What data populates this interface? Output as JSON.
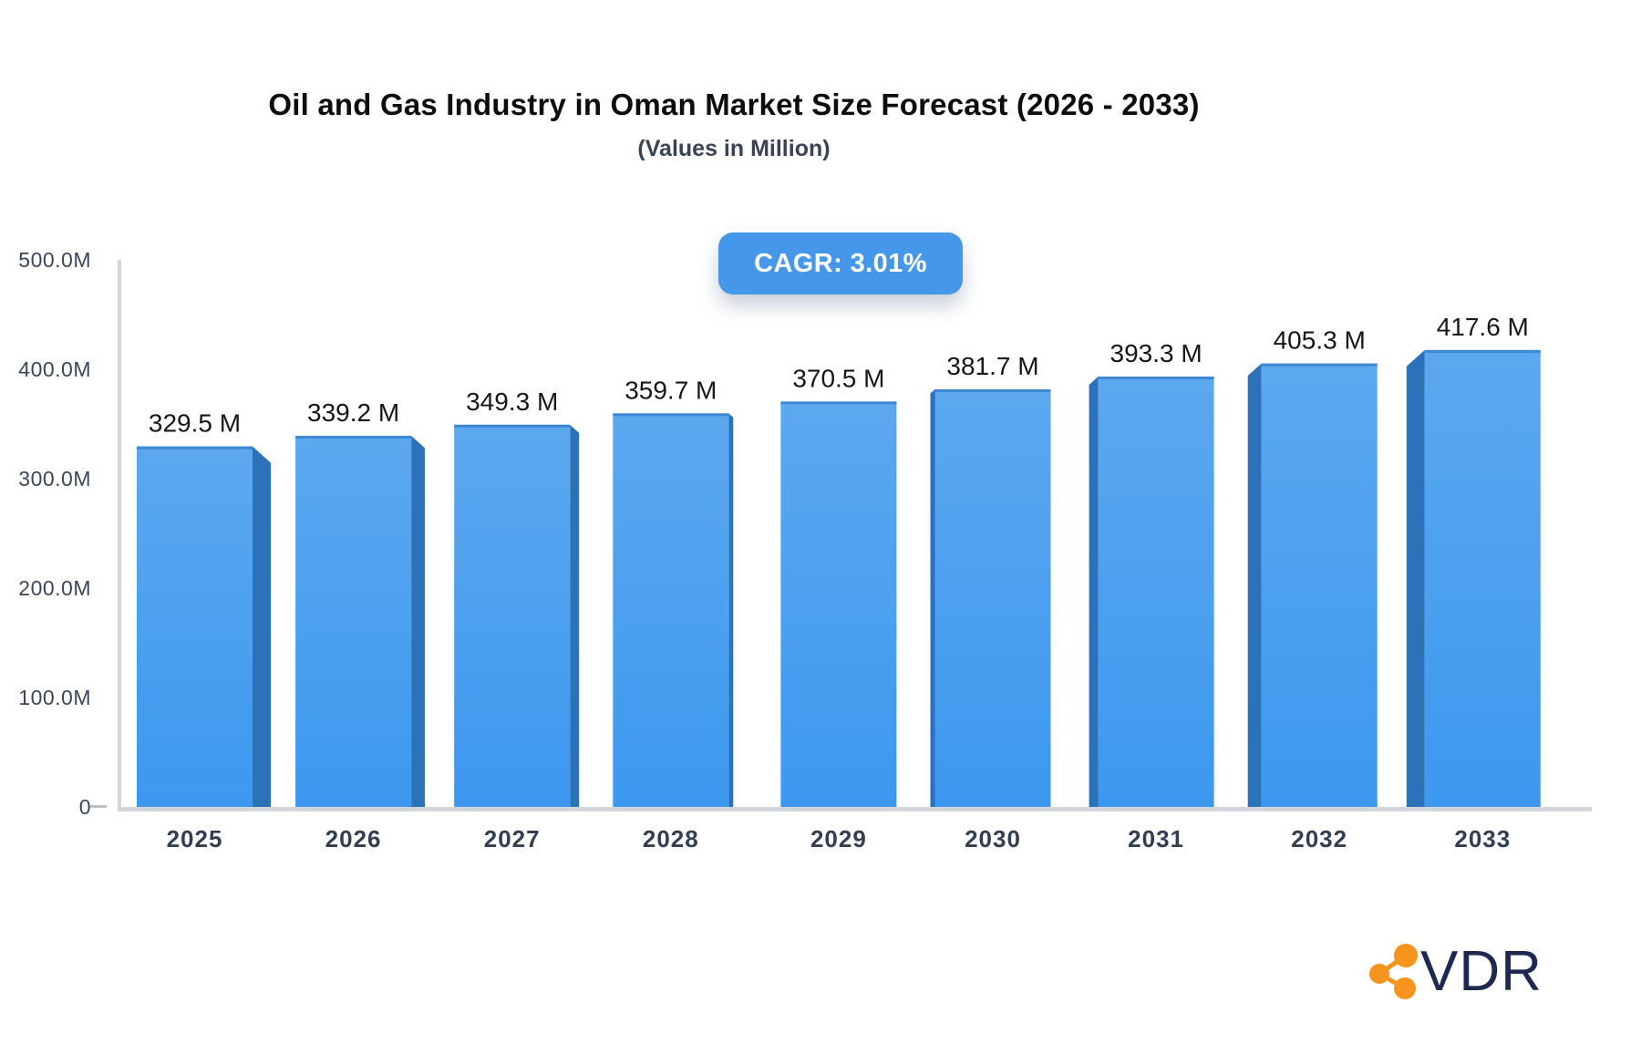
{
  "header": {
    "title": "Oil and Gas Industry in Oman Market Size Forecast (2026 - 2033)",
    "subtitle": "(Values in Million)",
    "cagr_label": "CAGR: 3.01%"
  },
  "logo": {
    "text": "VDR"
  },
  "colors": {
    "bar_face_top": "#5CA8EF",
    "bar_face_bottom": "#3C98EF",
    "bar_side": "#2B72B8",
    "bar_top_edge": "#3E87D3",
    "axis_line": "#D2D6DB",
    "tick_dash": "#B9BFC7",
    "badge_bg": "#4497E9",
    "value_label": "#15171B",
    "axis_label": "#3C4659",
    "year_label": "#333E52",
    "logo_orange": "#F6941E",
    "logo_navy": "#1F2950"
  },
  "chart_data": {
    "type": "bar",
    "title": "Oil and Gas Industry in Oman Market Size Forecast (2026 - 2033)",
    "subtitle": "(Values in Million)",
    "unit": "Million",
    "cagr": "3.01%",
    "categories": [
      "2025",
      "2026",
      "2027",
      "2028",
      "2029",
      "2030",
      "2031",
      "2032",
      "2033"
    ],
    "values": [
      329.5,
      339.2,
      349.3,
      359.7,
      370.5,
      381.7,
      393.3,
      405.3,
      417.6
    ],
    "value_suffix": " M",
    "y_ticks": [
      "0",
      "100.0M",
      "200.0M",
      "300.0M",
      "400.0M",
      "500.0M"
    ],
    "ylim": [
      0,
      500
    ],
    "grid": false,
    "legend": false,
    "effect": "3d-perspective-from-center"
  }
}
